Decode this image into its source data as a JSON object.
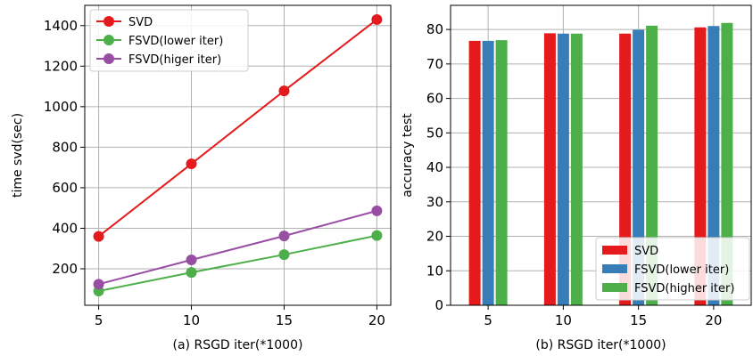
{
  "chart_data": [
    {
      "type": "line",
      "xlabel": "(a) RSGD iter(*1000)",
      "ylabel": "time svd(sec)",
      "x": [
        5,
        10,
        15,
        20
      ],
      "xticks": [
        5,
        10,
        15,
        20
      ],
      "yticks": [
        200,
        400,
        600,
        800,
        1000,
        1200,
        1400
      ],
      "xlim": [
        4.25,
        20.75
      ],
      "ylim": [
        20,
        1500
      ],
      "grid": true,
      "legend_position": "upper-left",
      "series": [
        {
          "name": "SVD",
          "color": "#e41a1c",
          "values": [
            360,
            718,
            1078,
            1430
          ]
        },
        {
          "name": "FSVD(lower iter)",
          "color": "#4daf4a",
          "values": [
            90,
            182,
            270,
            364
          ]
        },
        {
          "name": "FSVD(higer iter)",
          "color": "#984ea3",
          "values": [
            124,
            244,
            362,
            486
          ]
        }
      ]
    },
    {
      "type": "bar",
      "xlabel": "(b) RSGD iter(*1000)",
      "ylabel": "accuracy test",
      "categories": [
        "5",
        "10",
        "15",
        "20"
      ],
      "yticks": [
        0,
        10,
        20,
        30,
        40,
        50,
        60,
        70,
        80
      ],
      "ylim": [
        0,
        87
      ],
      "grid": true,
      "legend_position": "lower-right",
      "series": [
        {
          "name": "SVD",
          "color": "#e41a1c",
          "values": [
            76.7,
            78.9,
            78.8,
            80.6
          ]
        },
        {
          "name": "FSVD(lower iter)",
          "color": "#377eb8",
          "values": [
            76.7,
            78.8,
            79.9,
            81.0
          ]
        },
        {
          "name": "FSVD(higher iter)",
          "color": "#4daf4a",
          "values": [
            76.9,
            78.8,
            81.1,
            81.9
          ]
        }
      ]
    }
  ]
}
